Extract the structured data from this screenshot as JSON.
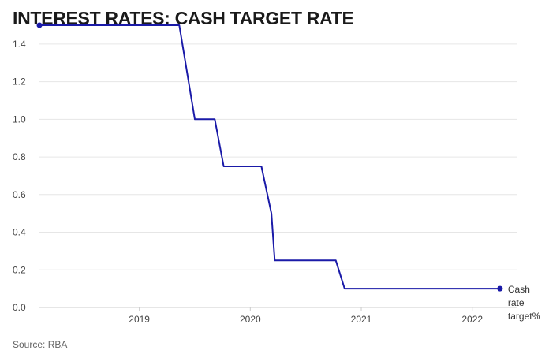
{
  "title": "INTEREST RATES: CASH TARGET RATE",
  "source": "Source: RBA",
  "colors": {
    "line": "#1a1aa8",
    "grid": "#e6e6e6",
    "axis": "#cccccc"
  },
  "chart_data": {
    "type": "line",
    "title": "INTEREST RATES: CASH TARGET RATE",
    "xlabel": "",
    "ylabel": "",
    "x_ticks": [
      2019,
      2020,
      2021,
      2022
    ],
    "xlim": [
      2018.1,
      2022.4
    ],
    "ylim": [
      0,
      1.5
    ],
    "y_ticks": [
      "0.0",
      "0.2",
      "0.4",
      "0.6",
      "0.8",
      "1.0",
      "1.2",
      "1.4"
    ],
    "grid": true,
    "series": [
      {
        "name": "Cash rate target%",
        "label_lines": [
          "Cash",
          "rate",
          "target%"
        ],
        "x": [
          2018.1,
          2019.36,
          2019.5,
          2019.68,
          2019.76,
          2020.1,
          2020.19,
          2020.22,
          2020.77,
          2020.85,
          2022.25
        ],
        "y": [
          1.5,
          1.5,
          1.0,
          1.0,
          0.75,
          0.75,
          0.5,
          0.25,
          0.25,
          0.1,
          0.1
        ]
      }
    ]
  }
}
